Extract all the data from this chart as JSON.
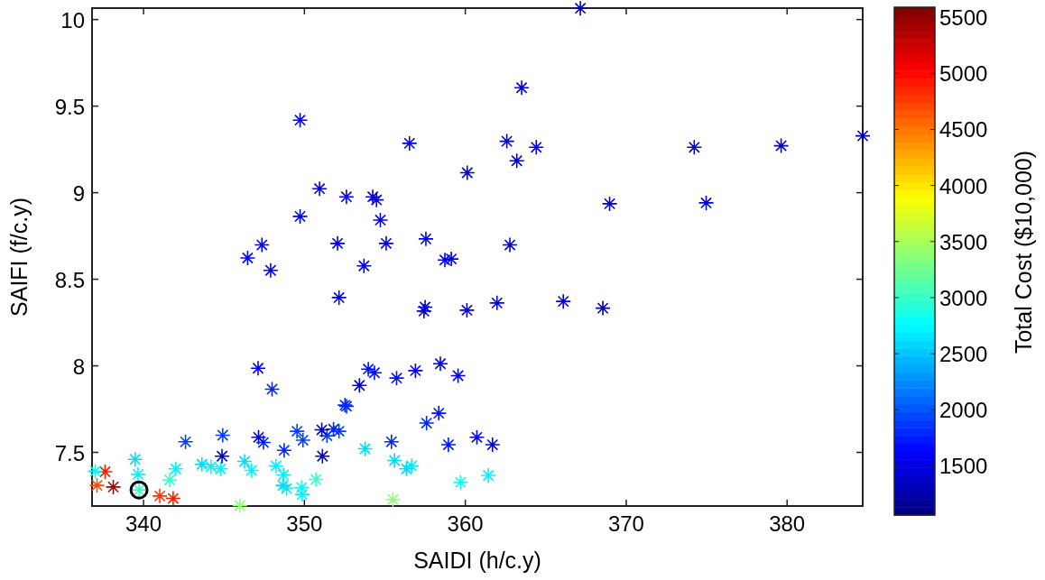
{
  "chart_data": {
    "type": "scatter",
    "xlabel": "SAIDI (h/c.y)",
    "ylabel": "SAIFI (f/c.y)",
    "clabel": "Total Cost ($10,000)",
    "xlim": [
      336.8,
      384.7
    ],
    "ylim": [
      7.19,
      10.066
    ],
    "xticks": [
      340,
      350,
      360,
      370,
      380
    ],
    "yticks": [
      7.5,
      8,
      8.5,
      9,
      9.5,
      10
    ],
    "clim": [
      1060,
      5590
    ],
    "cticks": [
      1500,
      2000,
      2500,
      3000,
      3500,
      4000,
      4500,
      5000,
      5500
    ],
    "grid": false,
    "marker": "cross",
    "series": [
      {
        "x": [
          363.5,
          349.73,
          356.53,
          362.58,
          364.41,
          363.2,
          360.12,
          350.94,
          352.61,
          354.25,
          354.48,
          349.73,
          354.72,
          347.36,
          346.47,
          347.9,
          352.06,
          355.08,
          357.55,
          358.73,
          359.13,
          353.7,
          362.77,
          352.15,
          357.5,
          357.43,
          360.1,
          361.97,
          367.15,
          374.23,
          379.63,
          384.7,
          368.97,
          374.97,
          366.09,
          368.55,
          353.97,
          354.35,
          353.42,
          355.73,
          356.9,
          358.45,
          359.55,
          352.62,
          358.35,
          357.59,
          355.41,
          353.77,
          358.95,
          360.72,
          361.69,
          355.6,
          356.34,
          356.66,
          359.7,
          361.43,
          355.5,
          347.12,
          347.99,
          352.52,
          342.61,
          344.92,
          344.88,
          347.15,
          347.45,
          348.74,
          349.54,
          349.91,
          351.08,
          351.4,
          351.81,
          352.15,
          351.12,
          339.48,
          339.66,
          337.0,
          337.61,
          337.11,
          338.12,
          339.72,
          341.01,
          341.84,
          341.62,
          342.0,
          343.63,
          344.19,
          344.79,
          346.28,
          346.71,
          345.99,
          348.23,
          348.7,
          348.66,
          348.89,
          349.82,
          349.86,
          350.72
        ],
        "values": [
          9.606,
          9.419,
          9.285,
          9.297,
          9.262,
          9.184,
          9.115,
          9.023,
          8.976,
          8.976,
          8.958,
          8.863,
          8.842,
          8.698,
          8.623,
          8.551,
          8.707,
          8.707,
          8.733,
          8.611,
          8.617,
          8.577,
          8.698,
          8.394,
          8.339,
          8.316,
          8.321,
          8.363,
          10.065,
          9.262,
          9.271,
          9.328,
          8.936,
          8.941,
          8.372,
          8.333,
          7.981,
          7.96,
          7.887,
          7.929,
          7.972,
          8.012,
          7.943,
          7.766,
          7.726,
          7.669,
          7.561,
          7.521,
          7.544,
          7.587,
          7.544,
          7.453,
          7.405,
          7.422,
          7.327,
          7.367,
          7.228,
          7.986,
          7.865,
          7.773,
          7.561,
          7.599,
          7.478,
          7.587,
          7.557,
          7.512,
          7.622,
          7.57,
          7.63,
          7.596,
          7.634,
          7.622,
          7.478,
          7.46,
          7.373,
          7.391,
          7.388,
          7.309,
          7.3,
          7.283,
          7.248,
          7.234,
          7.341,
          7.405,
          7.431,
          7.417,
          7.405,
          7.448,
          7.396,
          7.193,
          7.422,
          7.37,
          7.309,
          7.292,
          7.297,
          7.257,
          7.344
        ],
        "colors": [
          "#0000ee",
          "#0000ee",
          "#0000e3",
          "#0000d7",
          "#0000e3",
          "#0000c1",
          "#0000ee",
          "#0000e3",
          "#0000e3",
          "#0000d7",
          "#0000ee",
          "#0000ee",
          "#0000ee",
          "#0000f9",
          "#0005ff",
          "#0005ff",
          "#0000ee",
          "#0000ee",
          "#0000e3",
          "#0000e3",
          "#0000d7",
          "#0000d7",
          "#0000e3",
          "#0000f9",
          "#0000d7",
          "#0000d7",
          "#0000e3",
          "#0000e3",
          "#0000cc",
          "#0000cc",
          "#0000d7",
          "#0000cc",
          "#0000e3",
          "#0000d7",
          "#0000d7",
          "#0000c1",
          "#0011ff",
          "#0011ff",
          "#0000cc",
          "#0011ff",
          "#0000f9",
          "#0000e3",
          "#0000e3",
          "#0027ff",
          "#0011ff",
          "#0027ff",
          "#0027ff",
          "#00dbff",
          "#0011ff",
          "#0000f9",
          "#0000f9",
          "#00dbff",
          "#00dbff",
          "#00f2ff",
          "#09fff6",
          "#00f2ff",
          "#90ff6f",
          "#0000f9",
          "#0027ff",
          "#0027ff",
          "#003eff",
          "#003eff",
          "#0000cc",
          "#0000cc",
          "#0027ff",
          "#0027ff",
          "#003eff",
          "#003eff",
          "#0000b6",
          "#003eff",
          "#0027ff",
          "#003eff",
          "#0000cc",
          "#00dbff",
          "#00f2ff",
          "#00fdff",
          "#ff1c00",
          "#ff4900",
          "#aa0000",
          "#36ffc9",
          "#ff3200",
          "#ff1c00",
          "#36ffc9",
          "#00f2ff",
          "#00dbff",
          "#00f2ff",
          "#00f2ff",
          "#00dbff",
          "#00f2ff",
          "#90ff6f",
          "#00f2ff",
          "#00f2ff",
          "#00dbff",
          "#00f2ff",
          "#09fff6",
          "#00f2ff",
          "#36ffc9"
        ],
        "cvalues": [
          1550,
          1550,
          1500,
          1450,
          1500,
          1350,
          1550,
          1500,
          1500,
          1450,
          1550,
          1550,
          1550,
          1600,
          1650,
          1650,
          1550,
          1550,
          1500,
          1500,
          1450,
          1450,
          1500,
          1600,
          1450,
          1450,
          1500,
          1500,
          1400,
          1400,
          1450,
          1400,
          1500,
          1450,
          1450,
          1350,
          1700,
          1700,
          1400,
          1700,
          1600,
          1500,
          1500,
          1800,
          1700,
          1800,
          1800,
          2600,
          1700,
          1600,
          1600,
          2600,
          2600,
          2700,
          2800,
          2700,
          3400,
          1600,
          1800,
          1800,
          1900,
          1900,
          1400,
          1400,
          1800,
          1800,
          1900,
          1900,
          1300,
          1900,
          1800,
          1900,
          1400,
          2600,
          2700,
          2750,
          4900,
          4700,
          5400,
          3000,
          4800,
          4900,
          3000,
          2700,
          2600,
          2700,
          2700,
          2600,
          2700,
          3400,
          2700,
          2700,
          2600,
          2700,
          2800,
          2700,
          3000
        ]
      },
      {
        "type": "scatter",
        "marker": "circle",
        "color": "#000000",
        "x": [
          339.72
        ],
        "values": [
          7.283
        ]
      }
    ]
  }
}
